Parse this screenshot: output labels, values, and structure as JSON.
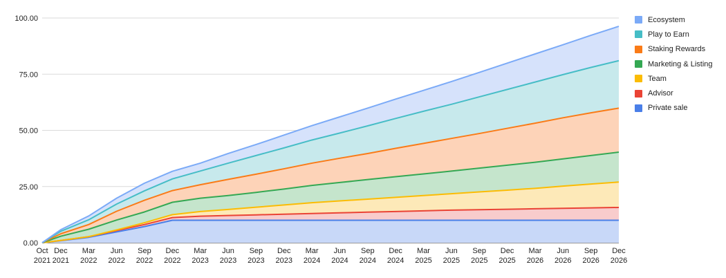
{
  "chart_data": {
    "type": "area",
    "stacked": true,
    "title": "",
    "xlabel": "",
    "ylabel": "",
    "ylim": [
      0,
      100
    ],
    "y_ticks": [
      "0.00",
      "25.00",
      "50.00",
      "75.00",
      "100.00"
    ],
    "grid": "horizontal",
    "legend_position": "right",
    "x_ticks": [
      [
        "Oct",
        "2021"
      ],
      [
        "Dec",
        "2021"
      ],
      [
        "Mar",
        "2022"
      ],
      [
        "Jun",
        "2022"
      ],
      [
        "Sep",
        "2022"
      ],
      [
        "Dec",
        "2022"
      ],
      [
        "Mar",
        "2023"
      ],
      [
        "Jun",
        "2023"
      ],
      [
        "Sep",
        "2023"
      ],
      [
        "Dec",
        "2023"
      ],
      [
        "Mar",
        "2024"
      ],
      [
        "Jun",
        "2024"
      ],
      [
        "Sep",
        "2024"
      ],
      [
        "Dec",
        "2024"
      ],
      [
        "Mar",
        "2025"
      ],
      [
        "Jun",
        "2025"
      ],
      [
        "Sep",
        "2025"
      ],
      [
        "Dec",
        "2025"
      ],
      [
        "Mar",
        "2026"
      ],
      [
        "Jun",
        "2026"
      ],
      [
        "Sep",
        "2026"
      ],
      [
        "Dec",
        "2026"
      ]
    ],
    "x_dates": [
      "2021-10",
      "2021-12",
      "2022-03",
      "2022-06",
      "2022-09",
      "2022-12",
      "2023-03",
      "2023-06",
      "2023-09",
      "2023-12",
      "2024-03",
      "2024-06",
      "2024-09",
      "2024-12",
      "2025-03",
      "2025-06",
      "2025-09",
      "2025-12",
      "2026-03",
      "2026-06",
      "2026-09",
      "2026-12"
    ],
    "series": [
      {
        "name": "Private sale",
        "color": "#4a7fe8",
        "fill": "#c8d8f8",
        "values": [
          0,
          0.9,
          2.4,
          4.8,
          7.2,
          10,
          10,
          10,
          10,
          10,
          10,
          10,
          10,
          10,
          10,
          10,
          10,
          10,
          10,
          10,
          10,
          10
        ]
      },
      {
        "name": "Advisor",
        "color": "#ea4335",
        "fill": "#f8cccc",
        "values": [
          0,
          0.1,
          0.3,
          0.6,
          0.9,
          1.2,
          1.8,
          2.1,
          2.4,
          2.7,
          3,
          3.3,
          3.6,
          3.9,
          4.2,
          4.5,
          4.7,
          4.9,
          5.1,
          5.3,
          5.5,
          5.7
        ]
      },
      {
        "name": "Team",
        "color": "#fbbc04",
        "fill": "#fde9b8",
        "values": [
          0,
          0,
          0,
          0.3,
          0.8,
          1.3,
          2.1,
          2.7,
          3.4,
          4.1,
          4.8,
          5.3,
          5.8,
          6.3,
          6.8,
          7.3,
          7.9,
          8.5,
          9.1,
          9.9,
          10.6,
          11.3
        ]
      },
      {
        "name": "Marketing & Listing",
        "color": "#34a853",
        "fill": "#c5e5cc",
        "values": [
          0,
          1.9,
          3.3,
          4.4,
          4.8,
          5.5,
          5.9,
          6.2,
          6.6,
          7.1,
          7.7,
          8.2,
          8.7,
          9.2,
          9.6,
          10.1,
          10.6,
          11.1,
          11.6,
          12.1,
          12.7,
          13.3
        ]
      },
      {
        "name": "Staking Rewards",
        "color": "#fa7b17",
        "fill": "#fdd3b8",
        "values": [
          0,
          1.1,
          2.1,
          3.9,
          5.2,
          5.2,
          6,
          7.2,
          8.1,
          9,
          9.9,
          10.8,
          11.6,
          12.6,
          13.6,
          14.5,
          15.4,
          16.4,
          17.4,
          18.3,
          19,
          19.6
        ]
      },
      {
        "name": "Play to Earn",
        "color": "#46bdc6",
        "fill": "#c7e9ec",
        "values": [
          0,
          1.1,
          2.1,
          3.2,
          4.2,
          5.2,
          6.1,
          7.2,
          8.3,
          9.3,
          10.3,
          11.2,
          12.3,
          13.3,
          14.3,
          15.2,
          16.3,
          17.3,
          18.3,
          19.2,
          20.2,
          21.1
        ]
      },
      {
        "name": "Ecosystem",
        "color": "#7baaf7",
        "fill": "#d6e2fb",
        "values": [
          0,
          0.7,
          1.7,
          2.6,
          3.4,
          3.4,
          3.5,
          4.3,
          4.9,
          5.7,
          6.4,
          7.2,
          7.9,
          8.6,
          9.3,
          10.1,
          10.9,
          11.7,
          12.5,
          13.3,
          14.3,
          15.3
        ]
      }
    ],
    "legend_order": [
      "Ecosystem",
      "Play to Earn",
      "Staking Rewards",
      "Marketing & Listing",
      "Team",
      "Advisor",
      "Private sale"
    ]
  }
}
